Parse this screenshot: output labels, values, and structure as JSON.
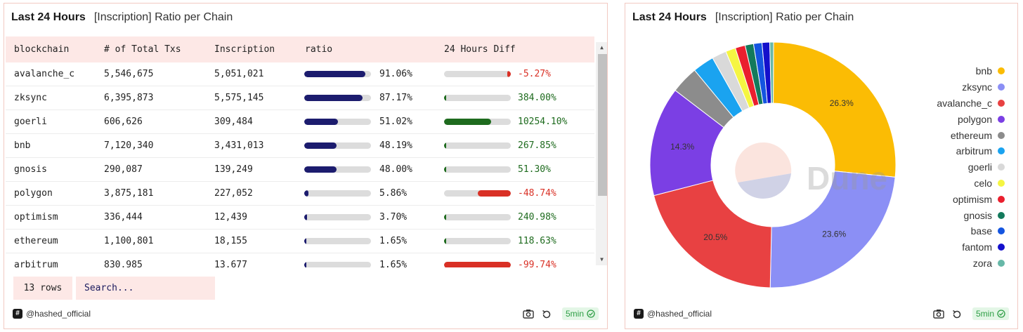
{
  "table_panel": {
    "timeframe": "Last 24 Hours",
    "title": "[Inscription] Ratio per Chain",
    "columns": [
      "blockchain",
      "# of Total Txs",
      "Inscription",
      "ratio",
      "24 Hours Diff"
    ],
    "rows": [
      {
        "blockchain": "avalanche_c",
        "total_txs": "5,546,675",
        "inscription": "5,051,021",
        "ratio": "91.06%",
        "ratio_value": 0.9106,
        "diff": "-5.27%",
        "diff_value": -5.27,
        "diff_color": "#d93025",
        "diff_bar": {
          "side": "negative",
          "fraction": 0.05
        }
      },
      {
        "blockchain": "zksync",
        "total_txs": "6,395,873",
        "inscription": "5,575,145",
        "ratio": "87.17%",
        "ratio_value": 0.8717,
        "diff": "384.00%",
        "diff_value": 384.0,
        "diff_color": "#1e6b1e",
        "diff_bar": {
          "side": "positive",
          "fraction": 0.02
        }
      },
      {
        "blockchain": "goerli",
        "total_txs": "606,626",
        "inscription": "309,484",
        "ratio": "51.02%",
        "ratio_value": 0.5102,
        "diff": "10254.10%",
        "diff_value": 10254.1,
        "diff_color": "#1e6b1e",
        "diff_bar": {
          "side": "positive",
          "fraction": 0.7
        }
      },
      {
        "blockchain": "bnb",
        "total_txs": "7,120,340",
        "inscription": "3,431,013",
        "ratio": "48.19%",
        "ratio_value": 0.4819,
        "diff": "267.85%",
        "diff_value": 267.85,
        "diff_color": "#1e6b1e",
        "diff_bar": {
          "side": "positive",
          "fraction": 0.018
        }
      },
      {
        "blockchain": "gnosis",
        "total_txs": "290,087",
        "inscription": "139,249",
        "ratio": "48.00%",
        "ratio_value": 0.48,
        "diff": "51.30%",
        "diff_value": 51.3,
        "diff_color": "#1e6b1e",
        "diff_bar": {
          "side": "positive",
          "fraction": 0.006
        }
      },
      {
        "blockchain": "polygon",
        "total_txs": "3,875,181",
        "inscription": "227,052",
        "ratio": "5.86%",
        "ratio_value": 0.0586,
        "diff": "-48.74%",
        "diff_value": -48.74,
        "diff_color": "#d93025",
        "diff_bar": {
          "side": "negative",
          "fraction": 0.49
        }
      },
      {
        "blockchain": "optimism",
        "total_txs": "336,444",
        "inscription": "12,439",
        "ratio": "3.70%",
        "ratio_value": 0.037,
        "diff": "240.98%",
        "diff_value": 240.98,
        "diff_color": "#1e6b1e",
        "diff_bar": {
          "side": "positive",
          "fraction": 0.017
        }
      },
      {
        "blockchain": "ethereum",
        "total_txs": "1,100,801",
        "inscription": "18,155",
        "ratio": "1.65%",
        "ratio_value": 0.0165,
        "diff": "118.63%",
        "diff_value": 118.63,
        "diff_color": "#1e6b1e",
        "diff_bar": {
          "side": "positive",
          "fraction": 0.01
        }
      },
      {
        "blockchain": "arbitrum",
        "total_txs": "830,985",
        "inscription": "13,677",
        "ratio": "1.65%",
        "ratio_value": 0.0165,
        "diff": "-99.74%",
        "diff_value": -99.74,
        "diff_color": "#d93025",
        "diff_bar": {
          "side": "negative",
          "fraction": 1.0
        }
      }
    ],
    "rows_count": "13 rows",
    "search_placeholder": "Search...",
    "author": "@hashed_official",
    "refresh": "5min"
  },
  "pie_panel": {
    "timeframe": "Last 24 Hours",
    "title": "[Inscription] Ratio per Chain",
    "watermark": "Dune",
    "author": "@hashed_official",
    "refresh": "5min"
  },
  "chart_data": [
    {
      "type": "table",
      "columns": [
        "blockchain",
        "# of Total Txs",
        "Inscription",
        "ratio",
        "24 Hours Diff"
      ],
      "rows": [
        [
          "avalanche_c",
          5546675,
          5051021,
          91.06,
          -5.27
        ],
        [
          "zksync",
          6395873,
          5575145,
          87.17,
          384.0
        ],
        [
          "goerli",
          606626,
          309484,
          51.02,
          10254.1
        ],
        [
          "bnb",
          7120340,
          3431013,
          48.19,
          267.85
        ],
        [
          "gnosis",
          290087,
          139249,
          48.0,
          51.3
        ],
        [
          "polygon",
          3875181,
          227052,
          5.86,
          -48.74
        ],
        [
          "optimism",
          336444,
          12439,
          3.7,
          240.98
        ],
        [
          "ethereum",
          1100801,
          18155,
          1.65,
          118.63
        ],
        [
          "arbitrum",
          830985,
          13677,
          1.65,
          -99.74
        ]
      ]
    },
    {
      "type": "pie",
      "title": "[Inscription] Ratio per Chain",
      "donut": true,
      "legend_position": "right",
      "slices": [
        {
          "label": "bnb",
          "value": 26.3,
          "color": "#fbbc04"
        },
        {
          "label": "zksync",
          "value": 23.6,
          "color": "#8b8ff5"
        },
        {
          "label": "avalanche_c",
          "value": 20.5,
          "color": "#e84142"
        },
        {
          "label": "polygon",
          "value": 14.3,
          "color": "#7b3fe4"
        },
        {
          "label": "ethereum",
          "value": 3.6,
          "color": "#8c8c8c"
        },
        {
          "label": "arbitrum",
          "value": 2.8,
          "color": "#1aa3f0"
        },
        {
          "label": "goerli",
          "value": 1.9,
          "color": "#d9d9d9"
        },
        {
          "label": "celo",
          "value": 1.3,
          "color": "#f5f542"
        },
        {
          "label": "optimism",
          "value": 1.3,
          "color": "#ea1f2e"
        },
        {
          "label": "gnosis",
          "value": 1.1,
          "color": "#137a5c"
        },
        {
          "label": "base",
          "value": 1.1,
          "color": "#1455e0"
        },
        {
          "label": "fantom",
          "value": 1.0,
          "color": "#1410cc"
        },
        {
          "label": "zora",
          "value": 0.5,
          "color": "#67b8a8"
        }
      ],
      "label_threshold": 10
    }
  ]
}
